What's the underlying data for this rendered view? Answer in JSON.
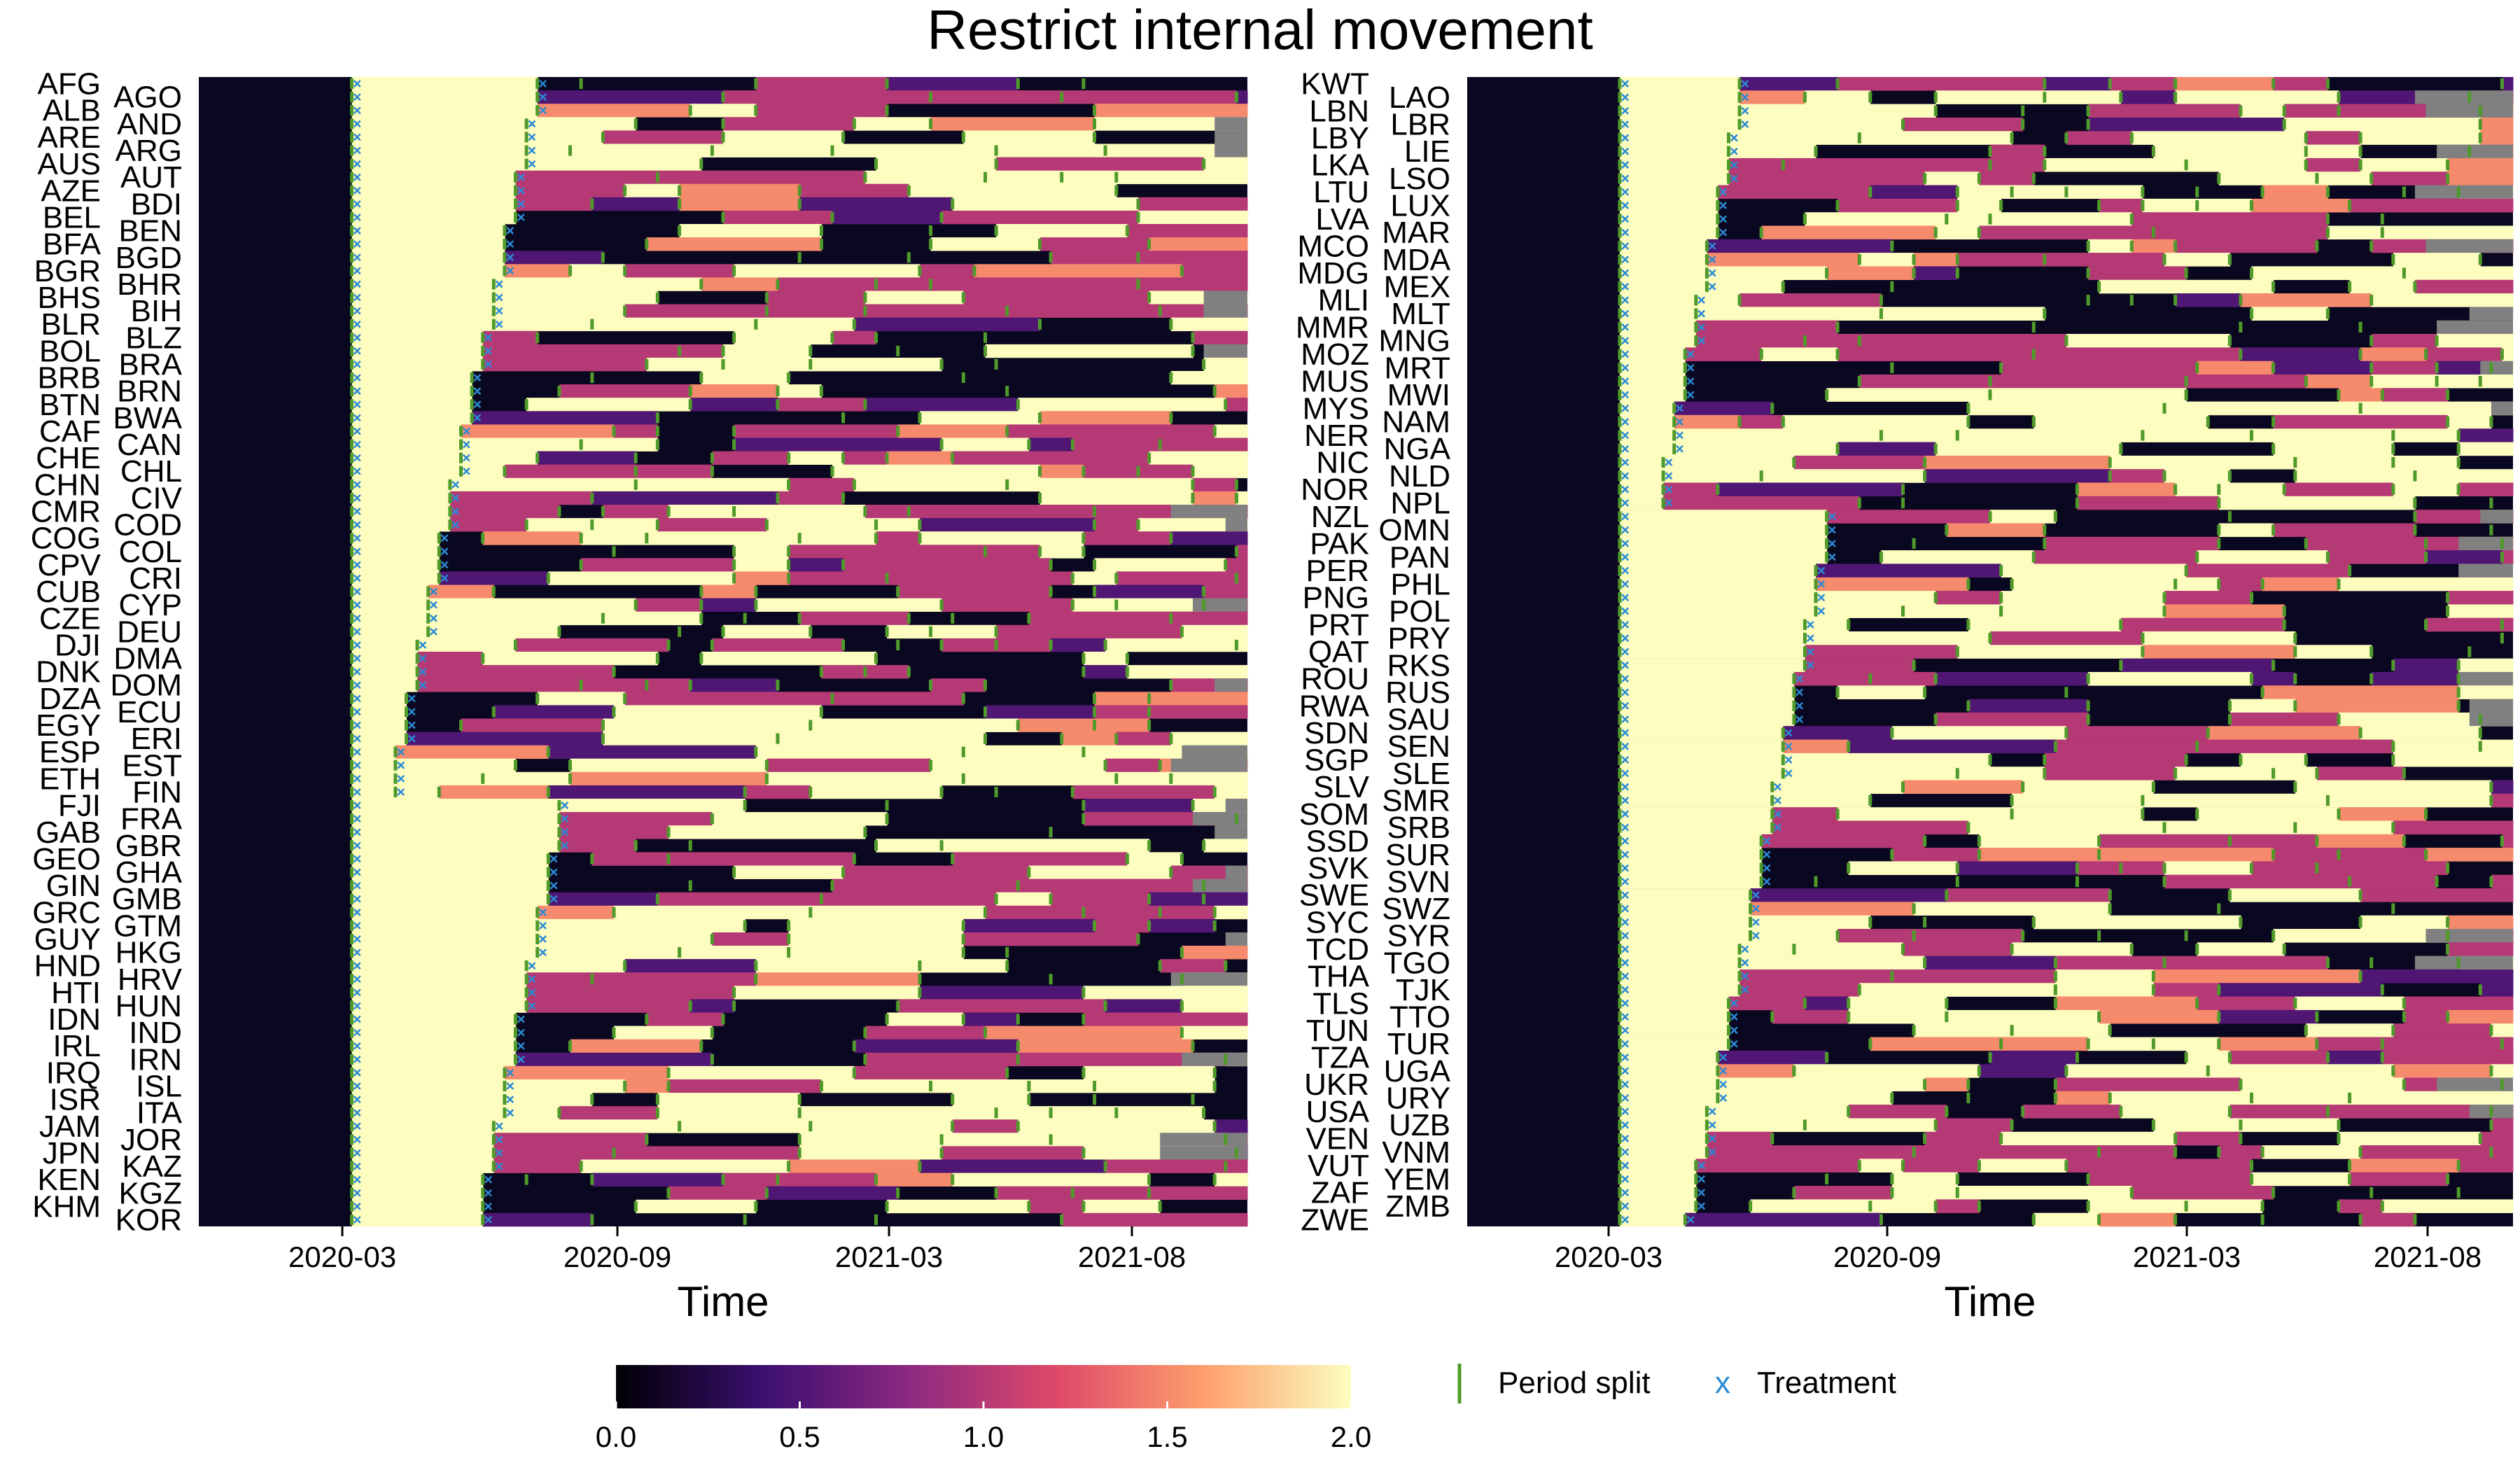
{
  "chart_data": {
    "type": "heatmap",
    "title": "Restrict internal movement",
    "xlabel": "Time",
    "x_ticks": [
      "2020-03",
      "2020-09",
      "2021-03",
      "2021-08"
    ],
    "x_range": [
      "2020-01-01",
      "2021-09-30"
    ],
    "value_range": [
      0,
      2
    ],
    "colorbar": {
      "ticks": [
        "0.0",
        "0.5",
        "1.0",
        "1.5",
        "2.0"
      ],
      "colormap": "magma",
      "stops": [
        "#000004",
        "#3b0f70",
        "#8c2981",
        "#de4968",
        "#fe9f6d",
        "#fcfdbf"
      ]
    },
    "missing_color": "#808080",
    "split_color": "#4f9a2a",
    "treatment_color": "#2a8ad4",
    "legend": {
      "split_label": "Period split",
      "treatment_symbol": "x",
      "treatment_label": "Treatment",
      "placement": "bottom-right"
    },
    "panels": [
      {
        "countries": [
          "AFG",
          "AGO",
          "ALB",
          "AND",
          "ARE",
          "ARG",
          "AUS",
          "AUT",
          "AZE",
          "BDI",
          "BEL",
          "BEN",
          "BFA",
          "BGD",
          "BGR",
          "BHR",
          "BHS",
          "BIH",
          "BLR",
          "BLZ",
          "BOL",
          "BRA",
          "BRB",
          "BRN",
          "BTN",
          "BWA",
          "CAF",
          "CAN",
          "CHE",
          "CHL",
          "CHN",
          "CIV",
          "CMR",
          "COD",
          "COG",
          "COL",
          "CPV",
          "CRI",
          "CUB",
          "CYP",
          "CZE",
          "DEU",
          "DJI",
          "DMA",
          "DNK",
          "DOM",
          "DZA",
          "ECU",
          "EGY",
          "ERI",
          "ESP",
          "EST",
          "ETH",
          "FIN",
          "FJI",
          "FRA",
          "GAB",
          "GBR",
          "GEO",
          "GHA",
          "GIN",
          "GMB",
          "GRC",
          "GTM",
          "GUY",
          "HKG",
          "HND",
          "HRV",
          "HTI",
          "HUN",
          "IDN",
          "IND",
          "IRL",
          "IRN",
          "IRQ",
          "ISL",
          "ISR",
          "ITA",
          "JAM",
          "JOR",
          "JPN",
          "KAZ",
          "KEN",
          "KGZ",
          "KHM",
          "KOR"
        ]
      },
      {
        "countries": [
          "KWT",
          "LAO",
          "LBN",
          "LBR",
          "LBY",
          "LIE",
          "LKA",
          "LSO",
          "LTU",
          "LUX",
          "LVA",
          "MAR",
          "MCO",
          "MDA",
          "MDG",
          "MEX",
          "MLI",
          "MLT",
          "MMR",
          "MNG",
          "MOZ",
          "MRT",
          "MUS",
          "MWI",
          "MYS",
          "NAM",
          "NER",
          "NGA",
          "NIC",
          "NLD",
          "NOR",
          "NPL",
          "NZL",
          "OMN",
          "PAK",
          "PAN",
          "PER",
          "PHL",
          "PNG",
          "POL",
          "PRT",
          "PRY",
          "QAT",
          "RKS",
          "ROU",
          "RUS",
          "RWA",
          "SAU",
          "SDN",
          "SEN",
          "SGP",
          "SLE",
          "SLV",
          "SMR",
          "SOM",
          "SRB",
          "SSD",
          "SUR",
          "SVK",
          "SVN",
          "SWE",
          "SWZ",
          "SYC",
          "SYR",
          "TCD",
          "TGO",
          "THA",
          "TJK",
          "TLS",
          "TTO",
          "TUN",
          "TUR",
          "TZA",
          "UGA",
          "UKR",
          "URY",
          "USA",
          "UZB",
          "VEN",
          "VNM",
          "VUT",
          "YEM",
          "ZAF",
          "ZMB",
          "ZWE"
        ]
      }
    ]
  }
}
